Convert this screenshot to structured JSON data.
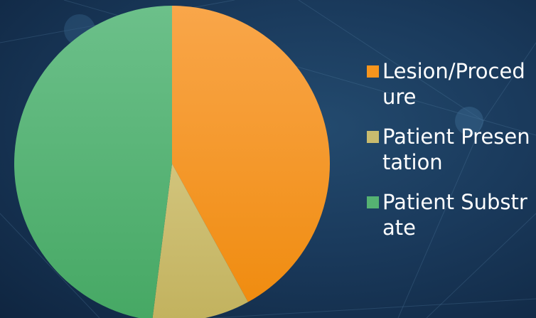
{
  "chart_data": {
    "type": "pie",
    "categories": [
      "Lesion/Procedure",
      "Patient Presentation",
      "Patient Substrate"
    ],
    "values": [
      42,
      10,
      48
    ],
    "colors": [
      "#f7951d",
      "#c9bb6e",
      "#55b272"
    ],
    "start_angle": 0,
    "direction": "clockwise",
    "legend": "right"
  }
}
